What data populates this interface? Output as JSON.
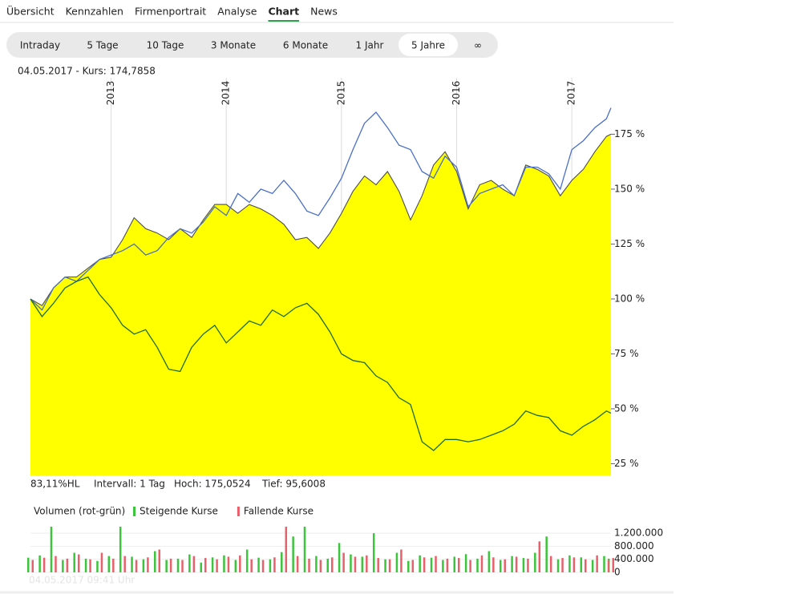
{
  "nav": {
    "tabs": [
      {
        "label": "Übersicht",
        "active": false
      },
      {
        "label": "Kennzahlen",
        "active": false
      },
      {
        "label": "Firmenportrait",
        "active": false
      },
      {
        "label": "Analyse",
        "active": false
      },
      {
        "label": "Chart",
        "active": true
      },
      {
        "label": "News",
        "active": false
      }
    ]
  },
  "ranges": {
    "buttons": [
      {
        "label": "Intraday",
        "active": false
      },
      {
        "label": "5 Tage",
        "active": false
      },
      {
        "label": "10 Tage",
        "active": false
      },
      {
        "label": "3 Monate",
        "active": false
      },
      {
        "label": "6 Monate",
        "active": false
      },
      {
        "label": "1 Jahr",
        "active": false
      },
      {
        "label": "5 Jahre",
        "active": true
      },
      {
        "label": "∞",
        "active": false
      }
    ]
  },
  "info": "04.05.2017  -  Kurs: 174,7858",
  "stats": [
    "83,11%HL",
    "Intervall: 1 Tag",
    "Hoch: 175,0524",
    "Tief: 95,6008"
  ],
  "timestamp": "04.05.2017 09:41 Uhr",
  "chart_data": [
    {
      "type": "line",
      "grid": true,
      "x": [
        2012.3,
        2012.4,
        2012.5,
        2012.6,
        2012.7,
        2012.8,
        2012.9,
        2013.0,
        2013.1,
        2013.2,
        2013.3,
        2013.4,
        2013.5,
        2013.6,
        2013.7,
        2013.8,
        2013.9,
        2014.0,
        2014.1,
        2014.2,
        2014.3,
        2014.4,
        2014.5,
        2014.6,
        2014.7,
        2014.8,
        2014.9,
        2015.0,
        2015.1,
        2015.2,
        2015.3,
        2015.4,
        2015.5,
        2015.6,
        2015.7,
        2015.8,
        2015.9,
        2016.0,
        2016.1,
        2016.2,
        2016.3,
        2016.4,
        2016.5,
        2016.6,
        2016.7,
        2016.8,
        2016.9,
        2017.0,
        2017.1,
        2017.2,
        2017.3,
        2017.34
      ],
      "xlim": [
        2012.3,
        2017.34
      ],
      "xticks": [
        2013,
        2014,
        2015,
        2016,
        2017
      ],
      "ylim": [
        19.7,
        200.7
      ],
      "yticks": [
        {
          "value": 25,
          "label": "25 %"
        },
        {
          "value": 50,
          "label": "50 %"
        },
        {
          "value": 75,
          "label": "75 %"
        },
        {
          "value": 100,
          "label": "100 %"
        },
        {
          "value": 125,
          "label": "125 %"
        },
        {
          "value": 150,
          "label": "150 %"
        },
        {
          "value": 175,
          "label": "175 %"
        }
      ],
      "series": [
        {
          "color": "#ffff00",
          "area": true,
          "line_color": "#4d4d4d",
          "values": [
            100,
            97,
            105,
            110,
            110,
            114,
            118,
            119,
            127,
            137,
            132,
            130,
            127,
            132,
            128,
            136,
            143,
            143,
            139,
            143,
            141,
            138,
            134,
            127,
            128,
            123,
            130,
            139,
            149,
            156,
            152,
            158,
            149,
            136,
            147,
            161,
            167,
            158,
            141,
            152,
            154,
            150,
            147,
            161,
            159,
            156,
            147,
            154,
            159,
            167,
            174,
            175
          ]
        },
        {
          "color": "#4a6fc7",
          "area": false,
          "values": [
            100,
            95,
            105,
            110,
            108,
            113,
            118,
            120,
            122,
            125,
            120,
            122,
            128,
            132,
            130,
            135,
            142,
            138,
            148,
            144,
            150,
            148,
            154,
            148,
            140,
            138,
            146,
            155,
            168,
            180,
            185,
            178,
            170,
            168,
            158,
            155,
            165,
            160,
            142,
            148,
            150,
            152,
            147,
            160,
            160,
            157,
            150,
            168,
            172,
            178,
            182,
            187
          ]
        },
        {
          "color": "#1f6b2e",
          "area": false,
          "values": [
            100,
            92,
            98,
            105,
            108,
            110,
            102,
            96,
            88,
            84,
            86,
            78,
            68,
            67,
            78,
            84,
            88,
            80,
            85,
            90,
            88,
            95,
            92,
            96,
            98,
            93,
            85,
            75,
            72,
            71,
            65,
            62,
            55,
            52,
            35,
            31,
            36,
            36,
            35,
            36,
            38,
            40,
            43,
            49,
            47,
            46,
            40,
            38,
            42,
            45,
            49,
            48
          ]
        }
      ]
    },
    {
      "type": "bar",
      "title": "Volumen (rot-grün)",
      "x": [
        2012.3,
        2012.4,
        2012.5,
        2012.6,
        2012.7,
        2012.8,
        2012.9,
        2013.0,
        2013.1,
        2013.2,
        2013.3,
        2013.4,
        2013.5,
        2013.6,
        2013.7,
        2013.8,
        2013.9,
        2014.0,
        2014.1,
        2014.2,
        2014.3,
        2014.4,
        2014.5,
        2014.6,
        2014.7,
        2014.8,
        2014.9,
        2015.0,
        2015.1,
        2015.2,
        2015.3,
        2015.4,
        2015.5,
        2015.6,
        2015.7,
        2015.8,
        2015.9,
        2016.0,
        2016.1,
        2016.2,
        2016.3,
        2016.4,
        2016.5,
        2016.6,
        2016.7,
        2016.8,
        2016.9,
        2017.0,
        2017.1,
        2017.2,
        2017.3,
        2017.34
      ],
      "xlim": [
        2012.3,
        2017.34
      ],
      "ylim": [
        0,
        1450000
      ],
      "yticks": [
        0,
        {
          "value": 400000,
          "label": "400.000"
        },
        {
          "value": 800000,
          "label": "800.000"
        },
        {
          "value": 1200000,
          "label": "1.200.000"
        }
      ],
      "series": [
        {
          "name": "Steigende Kurse",
          "color": "#3cc43c",
          "values": [
            450000,
            520000,
            1400000,
            380000,
            600000,
            420000,
            350000,
            500000,
            1400000,
            480000,
            400000,
            650000,
            380000,
            420000,
            550000,
            300000,
            460000,
            520000,
            380000,
            700000,
            450000,
            400000,
            620000,
            1100000,
            1400000,
            500000,
            420000,
            900000,
            550000,
            480000,
            1200000,
            400000,
            600000,
            350000,
            520000,
            450000,
            380000,
            480000,
            560000,
            420000,
            650000,
            380000,
            500000,
            440000,
            600000,
            1100000,
            400000,
            520000,
            460000,
            380000,
            500000,
            420000
          ]
        },
        {
          "name": "Fallende Kurse",
          "color": "#e8606a",
          "values": [
            380000,
            450000,
            500000,
            420000,
            550000,
            400000,
            600000,
            420000,
            500000,
            380000,
            460000,
            700000,
            420000,
            380000,
            500000,
            440000,
            400000,
            480000,
            520000,
            400000,
            380000,
            460000,
            1400000,
            500000,
            420000,
            380000,
            460000,
            600000,
            480000,
            520000,
            440000,
            400000,
            700000,
            380000,
            460000,
            500000,
            420000,
            440000,
            380000,
            520000,
            460000,
            400000,
            480000,
            420000,
            950000,
            500000,
            440000,
            460000,
            400000,
            520000,
            380000,
            440000
          ]
        }
      ]
    }
  ]
}
